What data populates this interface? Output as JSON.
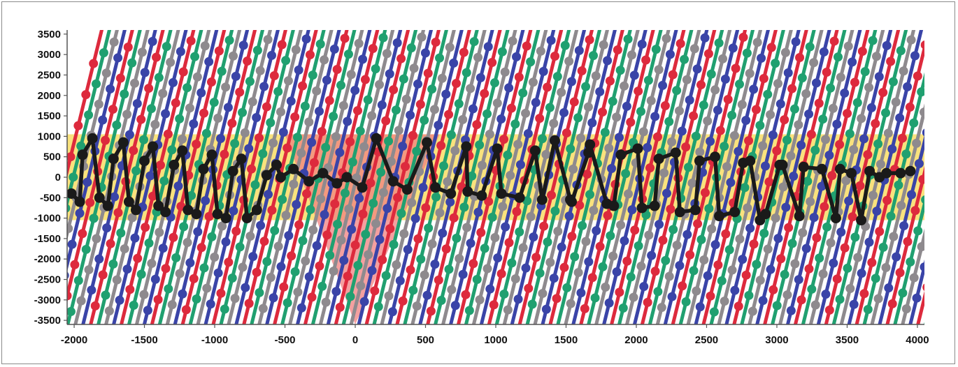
{
  "chart_data": {
    "type": "line",
    "title": "",
    "xlabel": "",
    "ylabel": "",
    "xlim": [
      -2050,
      4050
    ],
    "ylim": [
      -3600,
      3600
    ],
    "xticks": [
      "-2000",
      "-1500",
      "-1000",
      "-500",
      "0",
      "500",
      "1000",
      "1500",
      "2000",
      "2500",
      "3000",
      "3500",
      "4000"
    ],
    "yticks": [
      "3500",
      "3000",
      "2500",
      "2000",
      "1500",
      "1000",
      "500",
      "0",
      "-500",
      "-1000",
      "-1500",
      "-2000",
      "-2500",
      "-3000",
      "-3500"
    ],
    "grid": false,
    "legend": "none",
    "highlight_band": {
      "y_min": -1050,
      "y_max": 1050,
      "color": "#f9e27d"
    },
    "highlight_triangle": {
      "x_left": -500,
      "x_right": 600,
      "y_top": 1050,
      "apex_x": 0,
      "apex_y": -3600,
      "color": "#f08080"
    },
    "colored_series_colors": [
      "#dd2a3d",
      "#20a070",
      "#8e8a8e",
      "#3a44a8"
    ],
    "colored_series_slope": 14.0,
    "colored_series_spacing": 54.5,
    "colored_series_first_x_at_zero": -2061,
    "black_series": {
      "name": "",
      "color": "#1a1a1a",
      "x": [
        -2020,
        -1960,
        -1940,
        -1870,
        -1820,
        -1760,
        -1720,
        -1650,
        -1610,
        -1560,
        -1500,
        -1440,
        -1400,
        -1350,
        -1290,
        -1230,
        -1190,
        -1130,
        -1080,
        -1020,
        -980,
        -920,
        -870,
        -810,
        -770,
        -700,
        -630,
        -560,
        -530,
        -440,
        -330,
        -230,
        -130,
        -60,
        50,
        150,
        270,
        370,
        510,
        570,
        680,
        790,
        800,
        900,
        1010,
        1040,
        1170,
        1280,
        1330,
        1420,
        1530,
        1540,
        1660,
        1670,
        1790,
        1840,
        1890,
        2010,
        2040,
        2130,
        2160,
        2280,
        2310,
        2420,
        2450,
        2560,
        2590,
        2700,
        2760,
        2810,
        2880,
        2920,
        3020,
        3040,
        3160,
        3190,
        3320,
        3420,
        3450,
        3530,
        3600,
        3660,
        3730,
        3780,
        3880,
        3950
      ],
      "y": [
        -400,
        -600,
        550,
        950,
        -500,
        -700,
        450,
        850,
        -600,
        -800,
        400,
        750,
        -700,
        -850,
        300,
        650,
        -800,
        -900,
        200,
        550,
        -900,
        -1000,
        150,
        450,
        -1000,
        -800,
        50,
        300,
        0,
        200,
        -100,
        100,
        -150,
        0,
        -250,
        950,
        -100,
        -300,
        850,
        -250,
        -400,
        750,
        -350,
        -450,
        700,
        -400,
        -500,
        650,
        -550,
        900,
        -550,
        -600,
        600,
        800,
        -650,
        -700,
        550,
        700,
        -750,
        -700,
        450,
        600,
        -850,
        -800,
        400,
        500,
        -950,
        -850,
        350,
        400,
        -1050,
        -900,
        300,
        300,
        -950,
        250,
        200,
        -1000,
        200,
        100,
        -1050,
        150,
        0,
        100,
        100,
        150
      ]
    }
  }
}
